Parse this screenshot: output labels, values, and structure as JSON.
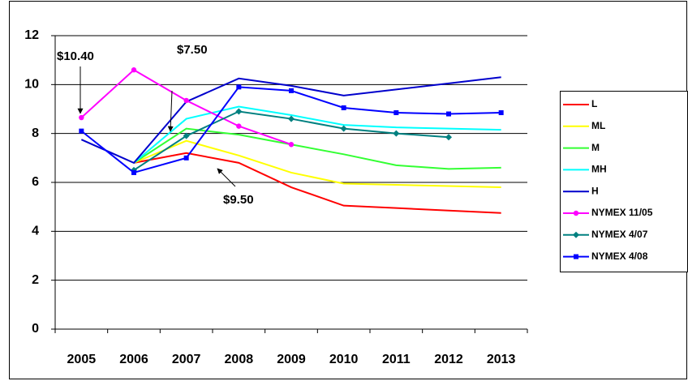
{
  "chart_data": {
    "type": "line",
    "categories": [
      "2005",
      "2006",
      "2007",
      "2008",
      "2009",
      "2010",
      "2011",
      "2012",
      "2013"
    ],
    "ylim": [
      0,
      12
    ],
    "yticks": [
      0,
      2,
      4,
      6,
      8,
      10,
      12
    ],
    "grid": true,
    "series": [
      {
        "name": "L",
        "color": "#ff0000",
        "values": [
          null,
          6.8,
          7.2,
          6.8,
          5.8,
          5.05,
          4.95,
          4.85,
          4.75
        ]
      },
      {
        "name": "ML",
        "color": "#ffff00",
        "values": [
          null,
          6.8,
          7.7,
          7.1,
          6.4,
          5.95,
          5.9,
          5.85,
          5.8
        ]
      },
      {
        "name": "M",
        "color": "#33ff33",
        "values": [
          null,
          6.8,
          8.2,
          7.95,
          7.55,
          7.15,
          6.7,
          6.55,
          6.6
        ]
      },
      {
        "name": "MH",
        "color": "#00ffff",
        "values": [
          null,
          6.8,
          8.6,
          9.1,
          8.75,
          8.35,
          8.25,
          8.2,
          8.15
        ]
      },
      {
        "name": "H",
        "color": "#0000cc",
        "values": [
          7.75,
          6.8,
          9.3,
          10.25,
          9.95,
          9.55,
          9.8,
          10.05,
          10.3
        ]
      },
      {
        "name": "NYMEX 11/05",
        "color": "#ff00ff",
        "marker": "circle",
        "values": [
          8.65,
          10.6,
          9.35,
          8.3,
          7.55,
          null,
          null,
          null,
          null
        ]
      },
      {
        "name": "NYMEX 4/07",
        "color": "#008080",
        "marker": "diamond",
        "values": [
          null,
          6.5,
          7.9,
          8.9,
          8.6,
          8.2,
          8.0,
          7.85,
          null
        ]
      },
      {
        "name": "NYMEX 4/08",
        "color": "#0000ff",
        "marker": "square",
        "values": [
          8.1,
          6.4,
          7.0,
          9.9,
          9.75,
          9.05,
          8.85,
          8.8,
          8.85
        ]
      }
    ],
    "annotations": [
      "$10.40",
      "$7.50",
      "$9.50"
    ]
  }
}
